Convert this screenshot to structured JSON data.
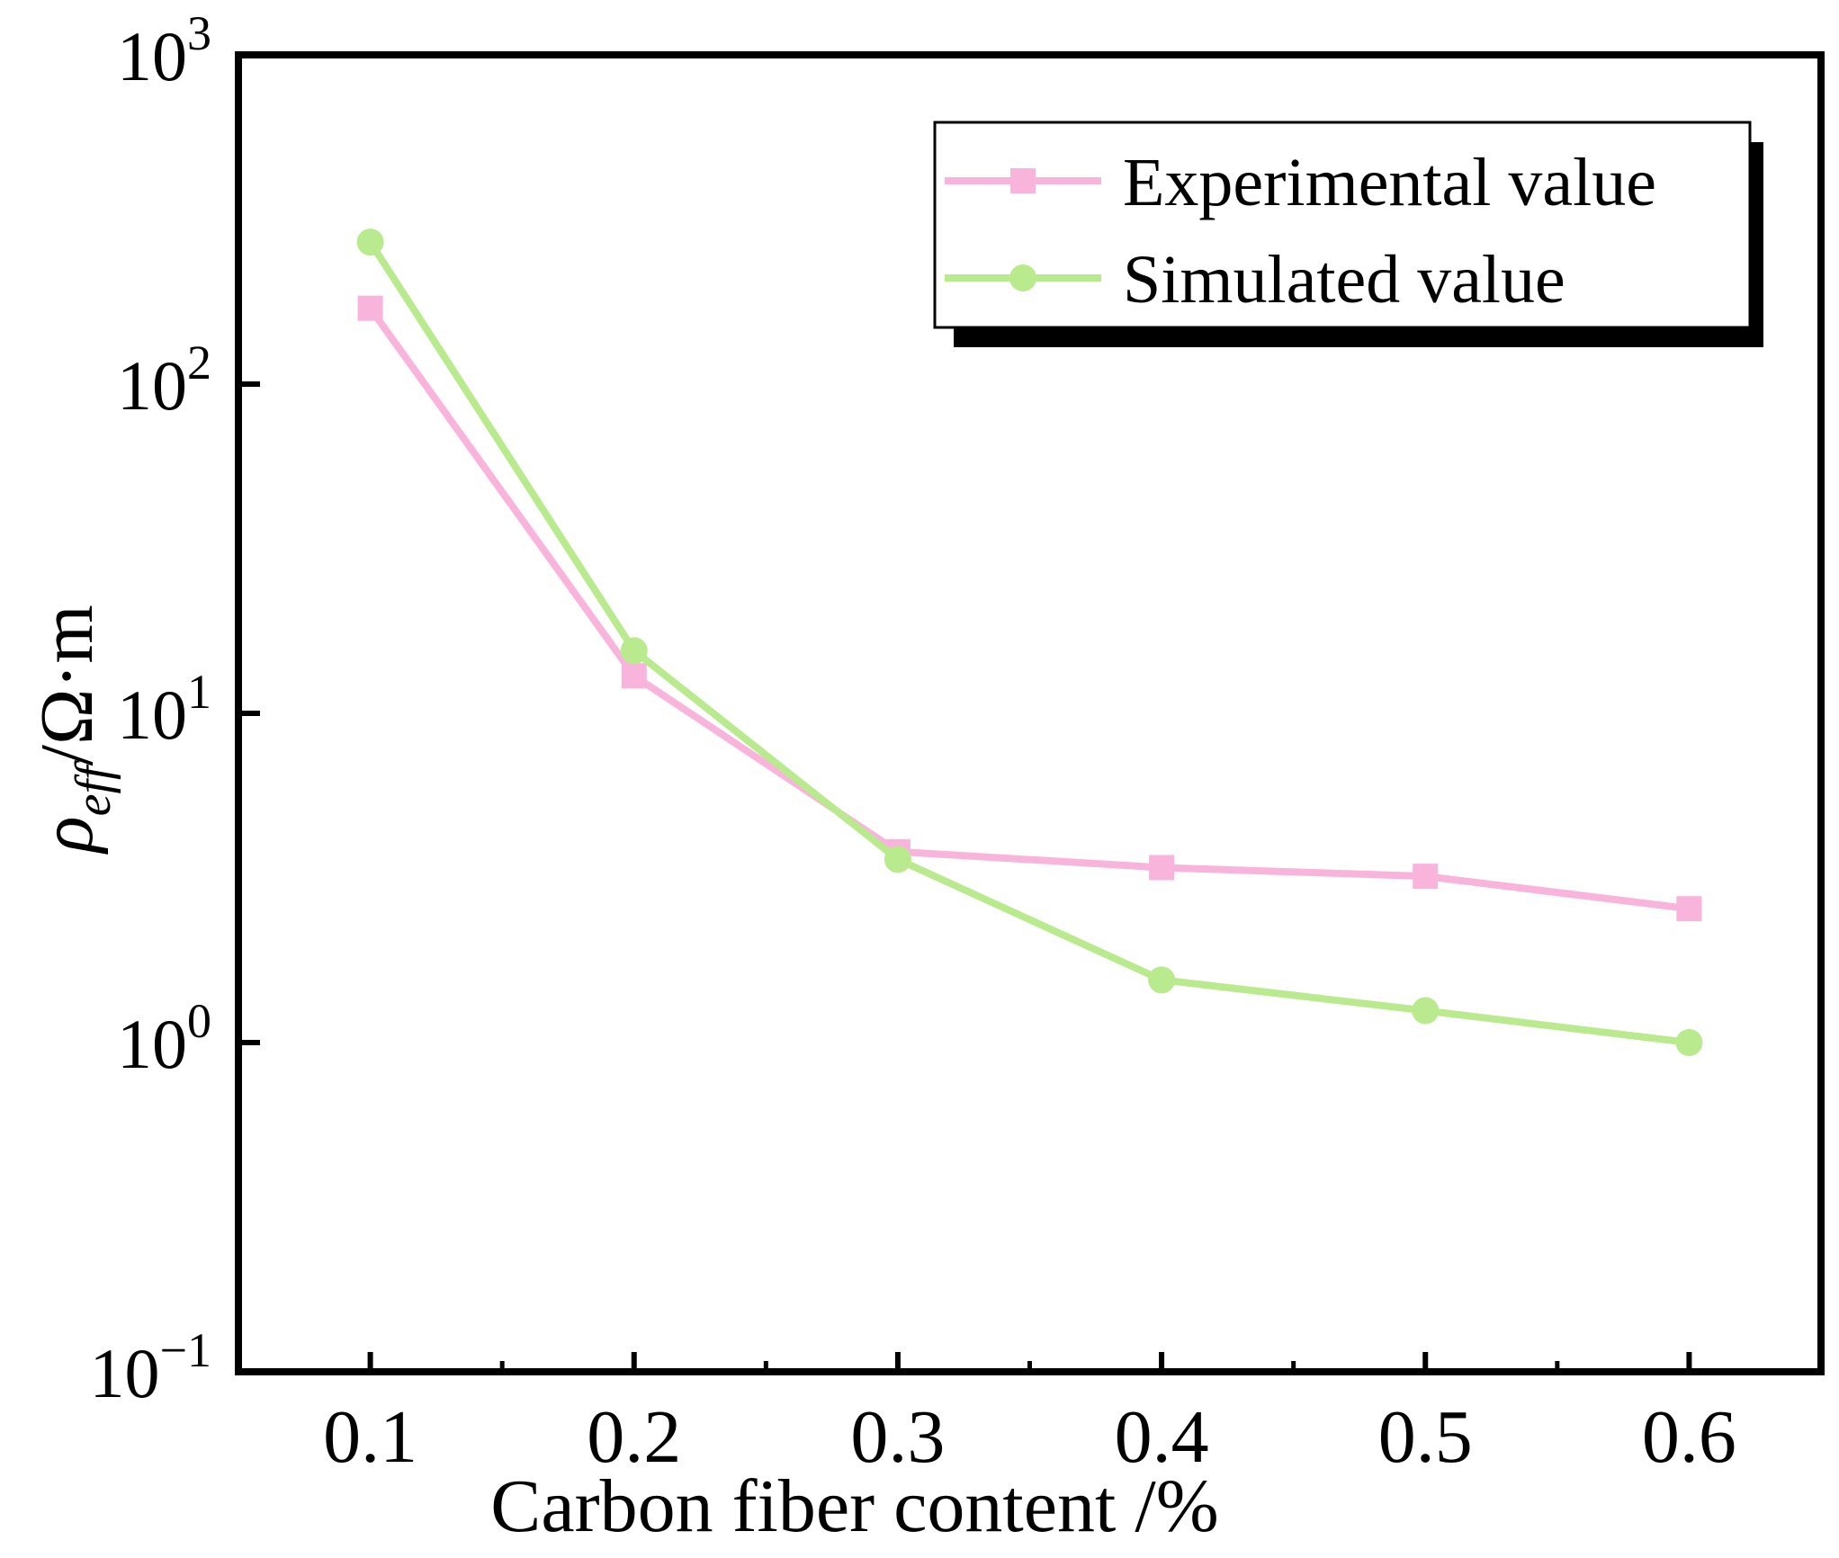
{
  "chart_data": {
    "type": "line",
    "title": "",
    "xlabel": "Carbon fiber content /%",
    "ylabel": {
      "symbol": "ρ",
      "subscript": "eff",
      "unit": "/Ω·m"
    },
    "yscale": "log",
    "ylim": [
      0.1,
      1000
    ],
    "xlim": [
      0.05,
      0.65
    ],
    "x": [
      0.1,
      0.2,
      0.3,
      0.4,
      0.5,
      0.6
    ],
    "x_tick_labels": [
      "0.1",
      "0.2",
      "0.3",
      "0.4",
      "0.5",
      "0.6"
    ],
    "y_ticks": [
      {
        "value": 0.1,
        "base": "10",
        "exp": "−1"
      },
      {
        "value": 1,
        "base": "10",
        "exp": "0"
      },
      {
        "value": 10,
        "base": "10",
        "exp": "1"
      },
      {
        "value": 100,
        "base": "10",
        "exp": "2"
      },
      {
        "value": 1000,
        "base": "10",
        "exp": "3"
      }
    ],
    "series": [
      {
        "name": "Experimental value",
        "values": [
          170,
          13,
          3.8,
          3.4,
          3.2,
          2.55
        ],
        "color": "#f9b4dc",
        "marker": "square"
      },
      {
        "name": "Simulated value",
        "values": [
          270,
          15.5,
          3.6,
          1.55,
          1.25,
          1.0
        ],
        "color": "#b9ea8e",
        "marker": "circle"
      }
    ],
    "grid": false,
    "legend_position": "top-right"
  }
}
